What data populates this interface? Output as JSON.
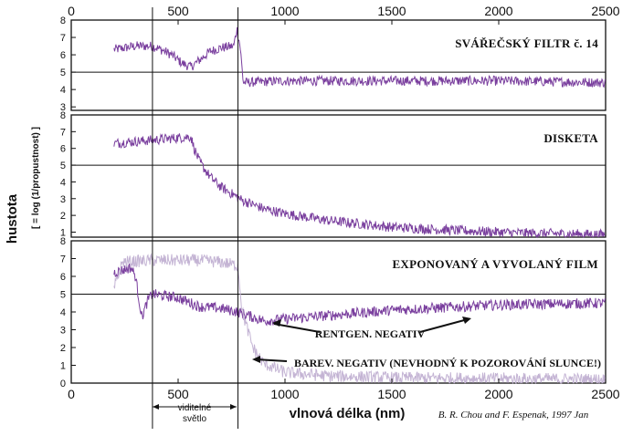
{
  "chart_data": {
    "type": "line",
    "xlabel": "vlnová délka (nm)",
    "ylabel": "hustota",
    "ylabel_sub": "[ = log (1/propustnost) ]",
    "xlim": [
      0,
      2500
    ],
    "x_ticks": [
      0,
      500,
      1000,
      1500,
      2000,
      2500
    ],
    "visible_band": {
      "label_line1": "viditelné",
      "label_line2": "světlo",
      "x_start": 380,
      "x_end": 780
    },
    "credit": "B. R. Chou and F. Espenak,  1997 Jan",
    "panels": [
      {
        "title": "SVÁŘEČSKÝ FILTR  č. 14",
        "ylim": [
          2.8,
          8
        ],
        "y_ticks": [
          3,
          4,
          5,
          6,
          7,
          8
        ],
        "reference_line": 5,
        "series": [
          {
            "kind": "segments",
            "noise": 0.28,
            "points": [
              [
                200,
                6.3
              ],
              [
                300,
                6.5
              ],
              [
                380,
                6.5
              ],
              [
                420,
                6.3
              ],
              [
                470,
                6.0
              ],
              [
                520,
                5.5
              ],
              [
                560,
                5.3
              ],
              [
                600,
                5.7
              ],
              [
                650,
                6.2
              ],
              [
                700,
                6.4
              ],
              [
                760,
                6.5
              ],
              [
                775,
                7.5
              ],
              [
                790,
                6.5
              ],
              [
                805,
                4.4
              ],
              [
                1000,
                4.5
              ],
              [
                1500,
                4.5
              ],
              [
                2000,
                4.5
              ],
              [
                2500,
                4.4
              ]
            ]
          }
        ]
      },
      {
        "title": "DISKETA",
        "ylim": [
          0.7,
          8
        ],
        "y_ticks": [
          1,
          2,
          3,
          4,
          5,
          6,
          7,
          8
        ],
        "reference_line": 5,
        "series": [
          {
            "kind": "segments",
            "noise": 0.3,
            "points": [
              [
                200,
                6.3
              ],
              [
                380,
                6.5
              ],
              [
                560,
                6.7
              ],
              [
                575,
                6.0
              ],
              [
                600,
                5.2
              ],
              [
                650,
                4.3
              ],
              [
                700,
                3.7
              ],
              [
                800,
                2.9
              ],
              [
                900,
                2.4
              ],
              [
                1000,
                2.1
              ],
              [
                1200,
                1.7
              ],
              [
                1500,
                1.3
              ],
              [
                1800,
                1.1
              ],
              [
                2100,
                0.95
              ],
              [
                2500,
                0.85
              ]
            ]
          }
        ]
      },
      {
        "title": "EXPONOVANÝ A VYVOLANÝ FILM",
        "ylim": [
          0,
          8
        ],
        "y_ticks": [
          0,
          1,
          2,
          3,
          4,
          5,
          6,
          7,
          8
        ],
        "reference_line": 5,
        "series": [
          {
            "name": "RENTGEN. NEGATIV",
            "color": "#7a3f9e",
            "kind": "segments",
            "noise": 0.3,
            "points": [
              [
                200,
                6.2
              ],
              [
                280,
                6.5
              ],
              [
                300,
                6.0
              ],
              [
                330,
                3.7
              ],
              [
                360,
                4.7
              ],
              [
                380,
                5.0
              ],
              [
                500,
                4.8
              ],
              [
                600,
                4.3
              ],
              [
                700,
                4.2
              ],
              [
                780,
                4.0
              ],
              [
                900,
                3.5
              ],
              [
                1200,
                3.8
              ],
              [
                1500,
                4.1
              ],
              [
                2000,
                4.4
              ],
              [
                2500,
                4.5
              ]
            ]
          },
          {
            "name": "BAREV. NEGATIV (NEVHODNÝ K POZOROVÁNÍ SLUNCE!)",
            "color": "#c4b4d4",
            "kind": "segments",
            "noise": 0.35,
            "points": [
              [
                200,
                5.3
              ],
              [
                240,
                6.8
              ],
              [
                380,
                6.9
              ],
              [
                600,
                6.9
              ],
              [
                700,
                6.8
              ],
              [
                780,
                6.6
              ],
              [
                800,
                4.0
              ],
              [
                850,
                2.0
              ],
              [
                900,
                1.1
              ],
              [
                1000,
                0.6
              ],
              [
                1200,
                0.4
              ],
              [
                1500,
                0.3
              ],
              [
                2000,
                0.25
              ],
              [
                2500,
                0.2
              ]
            ]
          }
        ]
      }
    ]
  },
  "colors": {
    "primary_series": "#7a3f9e",
    "secondary_series": "#c4b4d4",
    "axes": "#111111"
  }
}
